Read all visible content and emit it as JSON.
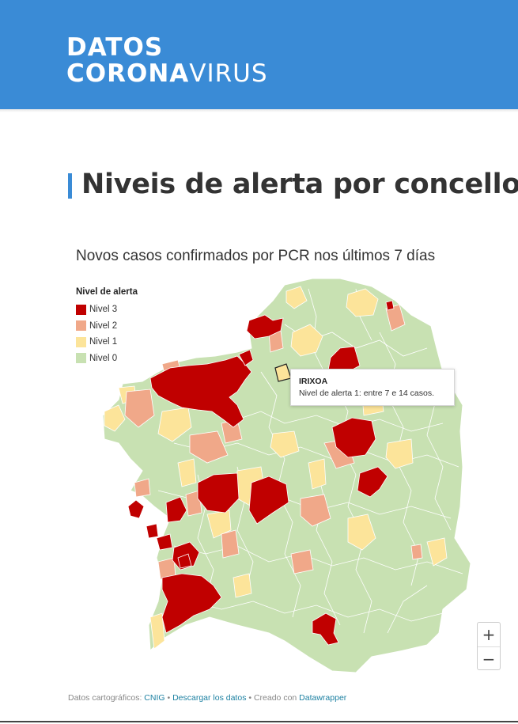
{
  "header": {
    "logo_line1": "DATOS",
    "logo_line2_bold": "CORONA",
    "logo_line2_thin": "VIRUS",
    "background_color": "#3a8bd6"
  },
  "page_title": "Niveis de alerta por concello",
  "chart": {
    "subtitle": "Novos casos confirmados por PCR nos últimos 7 días",
    "legend": {
      "title": "Nivel de alerta",
      "items": [
        {
          "label": "Nivel 3",
          "color": "#c00000"
        },
        {
          "label": "Nivel 2",
          "color": "#f0a889"
        },
        {
          "label": "Nivel 1",
          "color": "#fce49a"
        },
        {
          "label": "Nivel 0",
          "color": "#c8e1b2"
        }
      ]
    },
    "tooltip": {
      "title": "IRIXOA",
      "text": "Nivel de alerta 1: entre 7 e 14 casos."
    },
    "zoom": {
      "in_label": "+",
      "out_label": "−"
    }
  },
  "footer": {
    "prefix": "Datos cartográficos: ",
    "source_link": "CNIG",
    "sep1": " • ",
    "download_link": "Descargar los datos",
    "sep2": " • Creado con ",
    "tool_link": "Datawrapper"
  },
  "chart_data": {
    "type": "map",
    "categories": [
      "Nivel 3",
      "Nivel 2",
      "Nivel 1",
      "Nivel 0"
    ],
    "colors": [
      "#c00000",
      "#f0a889",
      "#fce49a",
      "#c8e1b2"
    ],
    "highlighted": {
      "name": "IRIXOA",
      "level": "Nivel 1"
    }
  }
}
